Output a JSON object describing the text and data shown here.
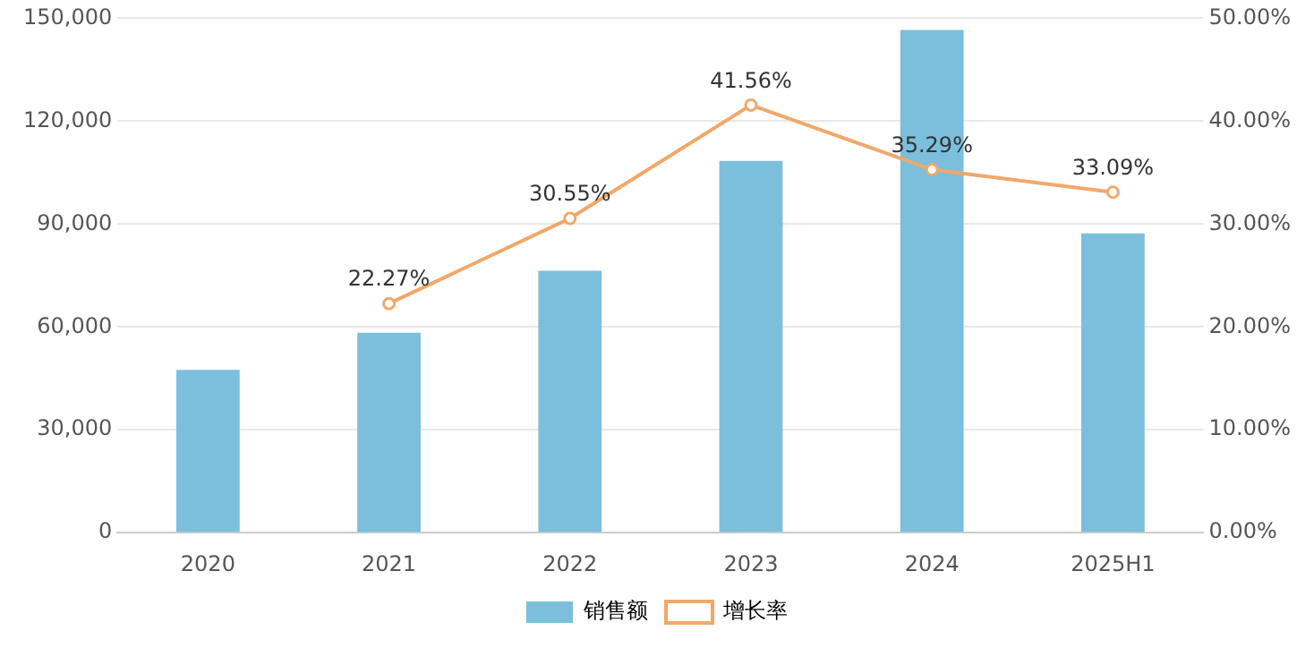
{
  "chart_data": {
    "type": "bar",
    "categories": [
      "2020",
      "2021",
      "2022",
      "2023",
      "2024",
      "2025H1"
    ],
    "series": [
      {
        "name": "销售额",
        "color": "#7bbfdc",
        "values": [
          47500,
          58300,
          76400,
          108400,
          146600,
          87300
        ]
      },
      {
        "name": "增长率",
        "type": "line",
        "axis": "y2",
        "color": "#f0a86a",
        "marker": "circle",
        "values": [
          null,
          22.27,
          30.55,
          41.56,
          35.29,
          33.09
        ],
        "value_labels": [
          null,
          "22.27%",
          "30.55%",
          "41.56%",
          "35.29%",
          "33.09%"
        ]
      }
    ],
    "ylim": [
      0,
      150000
    ],
    "yticks": [
      {
        "value": 0,
        "label": "0"
      },
      {
        "value": 30000,
        "label": "30,000"
      },
      {
        "value": 60000,
        "label": "60,000"
      },
      {
        "value": 90000,
        "label": "90,000"
      },
      {
        "value": 120000,
        "label": "120,000"
      },
      {
        "value": 150000,
        "label": "150,000"
      }
    ],
    "y2lim": [
      0,
      50
    ],
    "y2ticks": [
      {
        "value": 0,
        "label": "0.00%"
      },
      {
        "value": 10,
        "label": "10.00%"
      },
      {
        "value": 20,
        "label": "20.00%"
      },
      {
        "value": 30,
        "label": "30.00%"
      },
      {
        "value": 40,
        "label": "40.00%"
      },
      {
        "value": 50,
        "label": "50.00%"
      }
    ],
    "grid": "y",
    "legend": "bottom"
  }
}
